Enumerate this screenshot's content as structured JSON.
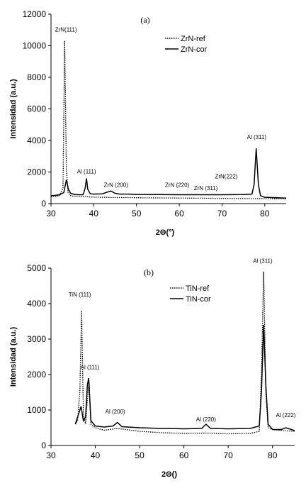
{
  "chart_data": [
    {
      "type": "line",
      "panel_label": "(a)",
      "xlabel": "2Θ(°)",
      "ylabel": "Intensidad (a.u.)",
      "xlim": [
        30,
        85
      ],
      "ylim": [
        0,
        12000
      ],
      "xticks": [
        "30",
        "40",
        "50",
        "60",
        "70",
        "80"
      ],
      "yticks": [
        "0",
        "2000",
        "4000",
        "6000",
        "8000",
        "10000",
        "12000"
      ],
      "legend": {
        "position": "top-right",
        "entries": [
          "ZrN-ref",
          "ZrN-cor"
        ]
      },
      "series": [
        {
          "name": "ZrN-ref",
          "style": "dotted",
          "x": [
            30,
            31,
            32,
            32.8,
            33.2,
            33.6,
            34.0,
            34.5,
            35,
            36,
            37,
            38,
            38.3,
            38.6,
            39,
            40,
            42,
            44,
            46,
            48,
            50,
            55,
            60,
            65,
            70,
            75,
            80,
            85
          ],
          "y": [
            450,
            460,
            500,
            1000,
            10300,
            2200,
            700,
            520,
            480,
            460,
            440,
            430,
            440,
            430,
            420,
            410,
            400,
            390,
            380,
            380,
            370,
            360,
            350,
            340,
            330,
            320,
            310,
            300
          ]
        },
        {
          "name": "ZrN-cor",
          "style": "solid",
          "x": [
            30,
            31,
            32,
            33,
            33.6,
            34.1,
            34.6,
            35.5,
            36.5,
            37.5,
            38.0,
            38.3,
            38.6,
            39.2,
            40,
            42,
            44,
            45,
            46,
            48,
            50,
            55,
            60,
            65,
            70,
            75,
            77,
            77.5,
            78.0,
            78.5,
            79,
            80,
            85
          ],
          "y": [
            500,
            520,
            560,
            700,
            1500,
            900,
            650,
            580,
            560,
            560,
            1000,
            1600,
            900,
            620,
            600,
            620,
            800,
            650,
            600,
            600,
            580,
            570,
            560,
            560,
            560,
            570,
            600,
            1200,
            3500,
            1200,
            500,
            400,
            350
          ]
        }
      ],
      "annotations": [
        {
          "text": "ZrN(111)",
          "x": 33.5,
          "y": 10900
        },
        {
          "text": "Al (111)",
          "x": 38.3,
          "y": 1900
        },
        {
          "text": "ZrN (200)",
          "x": 45.2,
          "y": 1050
        },
        {
          "text": "ZrN (220)",
          "x": 59.5,
          "y": 1050
        },
        {
          "text": "ZrN (311)",
          "x": 66.2,
          "y": 850
        },
        {
          "text": "ZrN(222)",
          "x": 71,
          "y": 1600
        },
        {
          "text": "Al (311)",
          "x": 78.1,
          "y": 4100
        }
      ]
    },
    {
      "type": "line",
      "panel_label": "(b)",
      "xlabel": "2Θ()",
      "ylabel": "Intensidad (a.u.)",
      "xlim": [
        30,
        85
      ],
      "ylim": [
        0,
        5000
      ],
      "xticks": [
        "30",
        "40",
        "50",
        "60",
        "70",
        "80"
      ],
      "yticks": [
        "0",
        "1000",
        "2000",
        "3000",
        "4000",
        "5000"
      ],
      "legend": {
        "position": "top-right",
        "entries": [
          "TiN-ref",
          "TiN-cor"
        ]
      },
      "series": [
        {
          "name": "TiN-ref",
          "style": "dotted",
          "x": [
            35.5,
            36,
            36.5,
            36.9,
            37.3,
            37.8,
            38.2,
            38.6,
            39,
            40,
            42,
            45,
            50,
            55,
            60,
            65,
            70,
            75,
            77,
            77.5,
            78.0,
            78.5,
            79,
            80,
            82,
            85
          ],
          "y": [
            600,
            700,
            1500,
            3800,
            900,
            600,
            1300,
            1800,
            600,
            500,
            430,
            480,
            400,
            360,
            340,
            350,
            330,
            340,
            400,
            2000,
            4900,
            1500,
            500,
            450,
            420,
            400
          ]
        },
        {
          "name": "TiN-cor",
          "style": "solid",
          "x": [
            35.5,
            36,
            36.8,
            37.3,
            37.8,
            38.2,
            38.5,
            39,
            40,
            42,
            44,
            45,
            46,
            50,
            55,
            60,
            64,
            65,
            66,
            70,
            75,
            77,
            77.5,
            78.0,
            78.5,
            79,
            80,
            82,
            83,
            85
          ],
          "y": [
            600,
            800,
            1100,
            700,
            800,
            1700,
            1900,
            700,
            550,
            520,
            550,
            650,
            530,
            500,
            480,
            470,
            480,
            600,
            480,
            470,
            480,
            550,
            1500,
            3400,
            1700,
            600,
            450,
            450,
            500,
            420
          ]
        }
      ],
      "annotations": [
        {
          "text": "TiN (111)",
          "x": 36.5,
          "y": 4200
        },
        {
          "text": "Al (111)",
          "x": 38.8,
          "y": 2150
        },
        {
          "text": "Al (200)",
          "x": 44.5,
          "y": 900
        },
        {
          "text": "Al (220)",
          "x": 65,
          "y": 680
        },
        {
          "text": "Al (311)",
          "x": 77.8,
          "y": 5150
        },
        {
          "text": "Al (222)",
          "x": 83,
          "y": 800
        }
      ]
    }
  ]
}
